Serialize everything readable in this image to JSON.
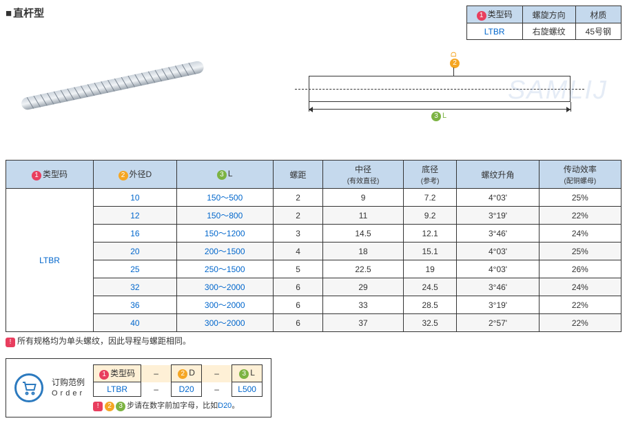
{
  "title": "直杆型",
  "topTable": {
    "headers": [
      "类型码",
      "螺旋方向",
      "材质"
    ],
    "badge": "1",
    "row": [
      "LTBR",
      "右旋螺纹",
      "45号钢"
    ]
  },
  "diagram": {
    "dimD": "D",
    "dimDBadge": "2",
    "dimL": "L",
    "dimLBadge": "3"
  },
  "watermark": "SAMLIJ",
  "mainTable": {
    "headers": [
      {
        "badge": "1",
        "badgeClass": "b1",
        "label": "类型码"
      },
      {
        "badge": "2",
        "badgeClass": "b2",
        "label": "外径D"
      },
      {
        "badge": "3",
        "badgeClass": "b3",
        "label": "L"
      },
      {
        "label": "螺距"
      },
      {
        "label": "中径",
        "sub": "(有效直径)"
      },
      {
        "label": "底径",
        "sub": "(参考)"
      },
      {
        "label": "螺纹升角"
      },
      {
        "label": "传动效率",
        "sub": "(配铜螺母)"
      }
    ],
    "typeCode": "LTBR",
    "rows": [
      [
        "10",
        "150～500",
        "2",
        "9",
        "7.2",
        "4°03'",
        "25%"
      ],
      [
        "12",
        "150～800",
        "2",
        "11",
        "9.2",
        "3°19'",
        "22%"
      ],
      [
        "16",
        "150～1200",
        "3",
        "14.5",
        "12.1",
        "3°46'",
        "24%"
      ],
      [
        "20",
        "200～1500",
        "4",
        "18",
        "15.1",
        "4°03'",
        "25%"
      ],
      [
        "25",
        "250～1500",
        "5",
        "22.5",
        "19",
        "4°03'",
        "26%"
      ],
      [
        "32",
        "300～2000",
        "6",
        "29",
        "24.5",
        "3°46'",
        "24%"
      ],
      [
        "36",
        "300～2000",
        "6",
        "33",
        "28.5",
        "3°19'",
        "22%"
      ],
      [
        "40",
        "300～2000",
        "6",
        "37",
        "32.5",
        "2°57'",
        "22%"
      ]
    ]
  },
  "note": {
    "badge": "!",
    "text": "所有规格均为单头螺纹，因此导程与螺距相同。"
  },
  "order": {
    "label1": "订购范例",
    "label2": "Order",
    "headers": [
      {
        "b": "1",
        "c": "b1",
        "t": "类型码"
      },
      {
        "b": "2",
        "c": "b2",
        "t": "D"
      },
      {
        "b": "3",
        "c": "b3",
        "t": "L"
      }
    ],
    "values": [
      "LTBR",
      "D20",
      "L500"
    ],
    "noteBadges": [
      {
        "b": "!",
        "c": "b1"
      },
      {
        "b": "2",
        "c": "b2"
      },
      {
        "b": "3",
        "c": "b3"
      }
    ],
    "noteText": "步请在数字前加字母，比如",
    "noteHl": "D20",
    "notePeriod": "。"
  }
}
